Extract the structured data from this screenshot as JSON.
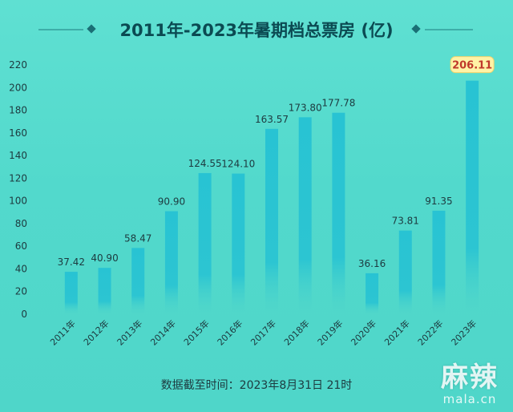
{
  "chart_data": {
    "type": "bar",
    "title": "2011年-2023年暑期档总票房 (亿)",
    "categories": [
      "2011年",
      "2012年",
      "2013年",
      "2014年",
      "2015年",
      "2016年",
      "2017年",
      "2018年",
      "2019年",
      "2020年",
      "2021年",
      "2022年",
      "2023年"
    ],
    "values": [
      37.42,
      40.9,
      58.47,
      90.9,
      124.55,
      124.1,
      163.57,
      173.8,
      177.78,
      36.16,
      73.81,
      91.35,
      206.11
    ],
    "value_labels": [
      "37.42",
      "40.90",
      "58.47",
      "90.90",
      "124.55",
      "124.10",
      "163.57",
      "173.80",
      "177.78",
      "36.16",
      "73.81",
      "91.35",
      "206.11"
    ],
    "ylim": [
      0,
      220
    ],
    "yticks": [
      0,
      20,
      40,
      60,
      80,
      100,
      120,
      140,
      160,
      180,
      200,
      220
    ],
    "grid": false,
    "highlight_index": 12,
    "colors": {
      "bar_top": "#28c3d3",
      "bar_bottom": "#4fd6c9",
      "title": "#0b4a52",
      "text": "#1d3a3f",
      "highlight_bg": "#fff3a6",
      "highlight_text": "#c0392b",
      "decoration": "#1a6f75"
    }
  },
  "footnote": "数据截至时间：2023年8月31日 21时",
  "watermark": {
    "main": "麻辣",
    "sub": "mala.cn"
  }
}
